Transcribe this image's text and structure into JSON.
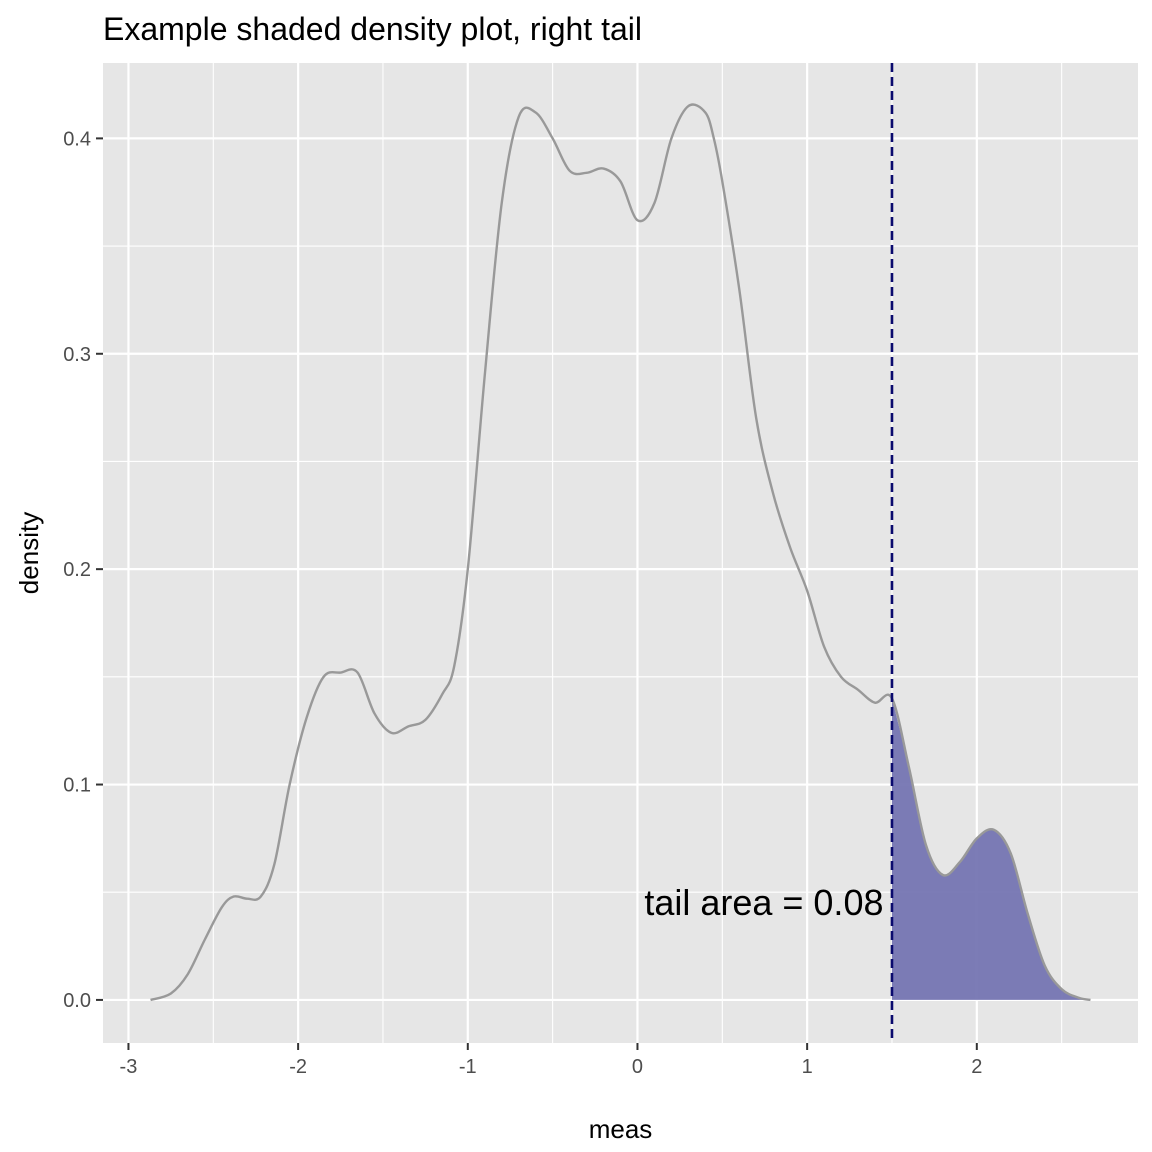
{
  "chart_data": {
    "type": "area",
    "title": "Example shaded density plot, right tail",
    "xlabel": "meas",
    "ylabel": "density",
    "xlim": [
      -3.15,
      2.95
    ],
    "ylim": [
      -0.02,
      0.435
    ],
    "x_ticks": [
      -3,
      -2,
      -1,
      0,
      1,
      2
    ],
    "x_tick_labels": [
      "-3",
      "-2",
      "-1",
      "0",
      "1",
      "2"
    ],
    "y_ticks": [
      0.0,
      0.1,
      0.2,
      0.3,
      0.4
    ],
    "y_tick_labels": [
      "0.0",
      "0.1",
      "0.2",
      "0.3",
      "0.4"
    ],
    "grid": true,
    "threshold": 1.5,
    "annotation": "tail area =  0.08",
    "annotation_position": [
      1.45,
      0.045
    ],
    "colors": {
      "panel": "#e6e6e6",
      "grid": "#ffffff",
      "curve": "#999999",
      "fill": "#7575b2",
      "threshold_line": "#0a0a6e"
    },
    "series": [
      {
        "x": [
          -2.87,
          -2.75,
          -2.65,
          -2.55,
          -2.45,
          -2.38,
          -2.3,
          -2.22,
          -2.14,
          -2.05,
          -1.95,
          -1.85,
          -1.75,
          -1.65,
          -1.55,
          -1.45,
          -1.35,
          -1.25,
          -1.15,
          -1.08,
          -1.0,
          -0.9,
          -0.8,
          -0.7,
          -0.6,
          -0.5,
          -0.4,
          -0.3,
          -0.2,
          -0.1,
          0.0,
          0.1,
          0.2,
          0.3,
          0.4,
          0.45,
          0.5,
          0.6,
          0.7,
          0.8,
          0.9,
          1.0,
          1.1,
          1.2,
          1.3,
          1.4,
          1.5,
          1.6,
          1.7,
          1.8,
          1.9,
          2.0,
          2.1,
          2.2,
          2.3,
          2.4,
          2.5,
          2.6,
          2.67
        ],
        "y": [
          0.0,
          0.003,
          0.012,
          0.028,
          0.043,
          0.048,
          0.047,
          0.048,
          0.063,
          0.1,
          0.131,
          0.15,
          0.152,
          0.152,
          0.133,
          0.124,
          0.127,
          0.13,
          0.142,
          0.155,
          0.2,
          0.29,
          0.37,
          0.41,
          0.412,
          0.4,
          0.385,
          0.384,
          0.386,
          0.38,
          0.362,
          0.37,
          0.4,
          0.415,
          0.412,
          0.4,
          0.38,
          0.33,
          0.27,
          0.235,
          0.21,
          0.19,
          0.164,
          0.15,
          0.144,
          0.138,
          0.14,
          0.108,
          0.072,
          0.058,
          0.064,
          0.075,
          0.079,
          0.068,
          0.04,
          0.016,
          0.005,
          0.001,
          0.0
        ]
      }
    ]
  }
}
